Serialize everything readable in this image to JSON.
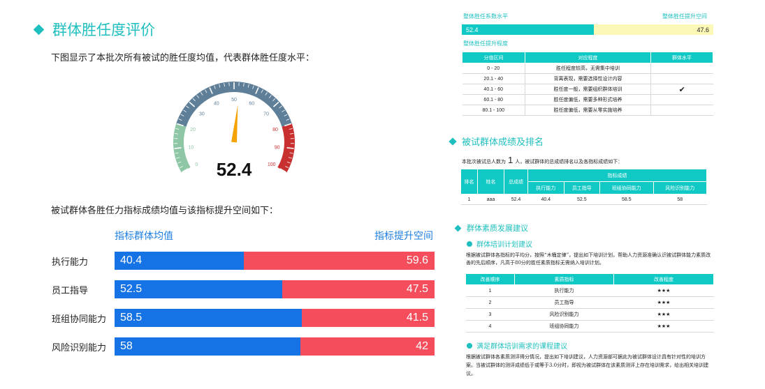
{
  "left": {
    "title": "群体胜任度评价",
    "intro1": "下图显示了本批次所有被试的胜任度均值，代表群体胜任度水平：",
    "gauge": {
      "value": 52.4,
      "value_label": "52.4",
      "min": 0,
      "max": 100,
      "ticks": [
        "0",
        "10",
        "20",
        "30",
        "40",
        "50",
        "60",
        "70",
        "80",
        "90",
        "100"
      ]
    },
    "intro2": "被试群体各胜任力指标成绩均值与该指标提升空间如下：",
    "bar_header_left": "指标群体均值",
    "bar_header_right": "指标提升空间",
    "bars": [
      {
        "label": "执行能力",
        "mean": 40.4,
        "mean_label": "40.4",
        "space_label": "59.6"
      },
      {
        "label": "员工指导",
        "mean": 52.5,
        "mean_label": "52.5",
        "space_label": "47.5"
      },
      {
        "label": "班组协同能力",
        "mean": 58.5,
        "mean_label": "58.5",
        "space_label": "41.5"
      },
      {
        "label": "风险识别能力",
        "mean": 58,
        "mean_label": "58",
        "space_label": "42"
      }
    ],
    "colors": {
      "mean": "#1673e6",
      "space": "#f54d5b"
    }
  },
  "right": {
    "coef_label": "整体胜任系数水平",
    "space_label": "整体胜任提升空间",
    "overall_value": 52.4,
    "overall_value_label": "52.4",
    "overall_space_label": "47.6",
    "level_label": "整体胜任提升程度",
    "level_table": {
      "headers": [
        "分值区间",
        "对应程度",
        "群体水平"
      ],
      "rows": [
        [
          "0 - 20",
          "胜任程度较高，无需集中培训",
          ""
        ],
        [
          "20.1 - 40",
          "背离表现，需要选择性设计内容",
          ""
        ],
        [
          "40.1 - 60",
          "胜任度一般，需要组织群体培训",
          "✔"
        ],
        [
          "60.1 - 80",
          "胜任度偏低，需要多种形式培养",
          ""
        ],
        [
          "80.1 - 100",
          "胜任度偏低，需要从零实施培养",
          ""
        ]
      ]
    },
    "sec2_title": "被试群体成绩及排名",
    "count_prefix": "本批次被试总人数为",
    "count_value": "1",
    "count_suffix": "人，被试群体的总成绩排名以及各指标成绩如下：",
    "score_table": {
      "h_rank": "排名",
      "h_name": "姓名",
      "h_total": "总成绩",
      "h_group": "指标成绩",
      "sub_headers": [
        "执行能力",
        "员工指导",
        "班组协同能力",
        "风险识别能力"
      ],
      "rows": [
        [
          "1",
          "aaa",
          "52.4",
          "40.4",
          "52.5",
          "58.5",
          "58"
        ]
      ]
    },
    "sec3_title": "群体素质发展建议",
    "sub1_title": "群体培训计划建议",
    "para1": "根据被试群体各指标的平均分，按照“木桶定律”，提出如下培训计划，帮助人力资源准确认识被试群体能力素质改善的先后顺序，凡高于80分的胜任素质指标无需纳入培训计划。",
    "imp_table": {
      "headers": [
        "改善顺序",
        "素质指标",
        "改善程度"
      ],
      "rows": [
        [
          "1",
          "执行能力",
          "★★★"
        ],
        [
          "2",
          "员工指导",
          "★★★"
        ],
        [
          "3",
          "风险识别能力",
          "★★★"
        ],
        [
          "4",
          "班组协同能力",
          "★★★"
        ]
      ]
    },
    "sub2_title": "满足群体培训需求的课程建议",
    "para2": "根据被试群体各素质测评得分情况，提出如下培训建议，人力资源部可据此为被试群体设计具有针对性的培训方案。当被试群体的测评成绩低于或等于3.0分时，即视为被试群体在该素质测评上存在培训需求，给出相关培训建议。"
  }
}
